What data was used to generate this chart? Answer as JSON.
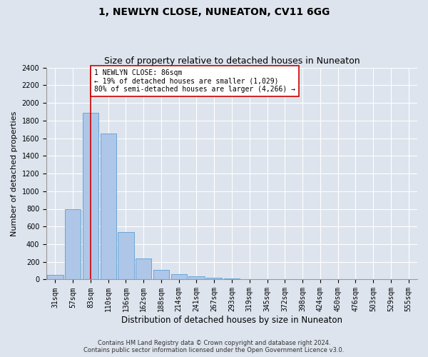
{
  "title": "1, NEWLYN CLOSE, NUNEATON, CV11 6GG",
  "subtitle": "Size of property relative to detached houses in Nuneaton",
  "xlabel": "Distribution of detached houses by size in Nuneaton",
  "ylabel": "Number of detached properties",
  "categories": [
    "31sqm",
    "57sqm",
    "83sqm",
    "110sqm",
    "136sqm",
    "162sqm",
    "188sqm",
    "214sqm",
    "241sqm",
    "267sqm",
    "293sqm",
    "319sqm",
    "345sqm",
    "372sqm",
    "398sqm",
    "424sqm",
    "450sqm",
    "476sqm",
    "503sqm",
    "529sqm",
    "555sqm"
  ],
  "values": [
    55,
    800,
    1890,
    1650,
    535,
    240,
    108,
    58,
    35,
    20,
    15,
    0,
    0,
    0,
    0,
    0,
    0,
    0,
    0,
    0,
    0
  ],
  "bar_color": "#aec6e8",
  "bar_edge_color": "#5a9fd4",
  "highlight_bar_index": 2,
  "annotation_text": "1 NEWLYN CLOSE: 86sqm\n← 19% of detached houses are smaller (1,029)\n80% of semi-detached houses are larger (4,266) →",
  "annotation_box_color": "#ffffff",
  "annotation_box_edge_color": "#cc0000",
  "red_line_color": "#cc0000",
  "ylim": [
    0,
    2400
  ],
  "yticks": [
    0,
    200,
    400,
    600,
    800,
    1000,
    1200,
    1400,
    1600,
    1800,
    2000,
    2200,
    2400
  ],
  "bg_color": "#dde4ed",
  "plot_bg_color": "#dde4ed",
  "grid_color": "#ffffff",
  "footer_line1": "Contains HM Land Registry data © Crown copyright and database right 2024.",
  "footer_line2": "Contains public sector information licensed under the Open Government Licence v3.0.",
  "title_fontsize": 10,
  "subtitle_fontsize": 9,
  "xlabel_fontsize": 8.5,
  "ylabel_fontsize": 8,
  "tick_fontsize": 7,
  "annotation_fontsize": 7,
  "footer_fontsize": 6
}
